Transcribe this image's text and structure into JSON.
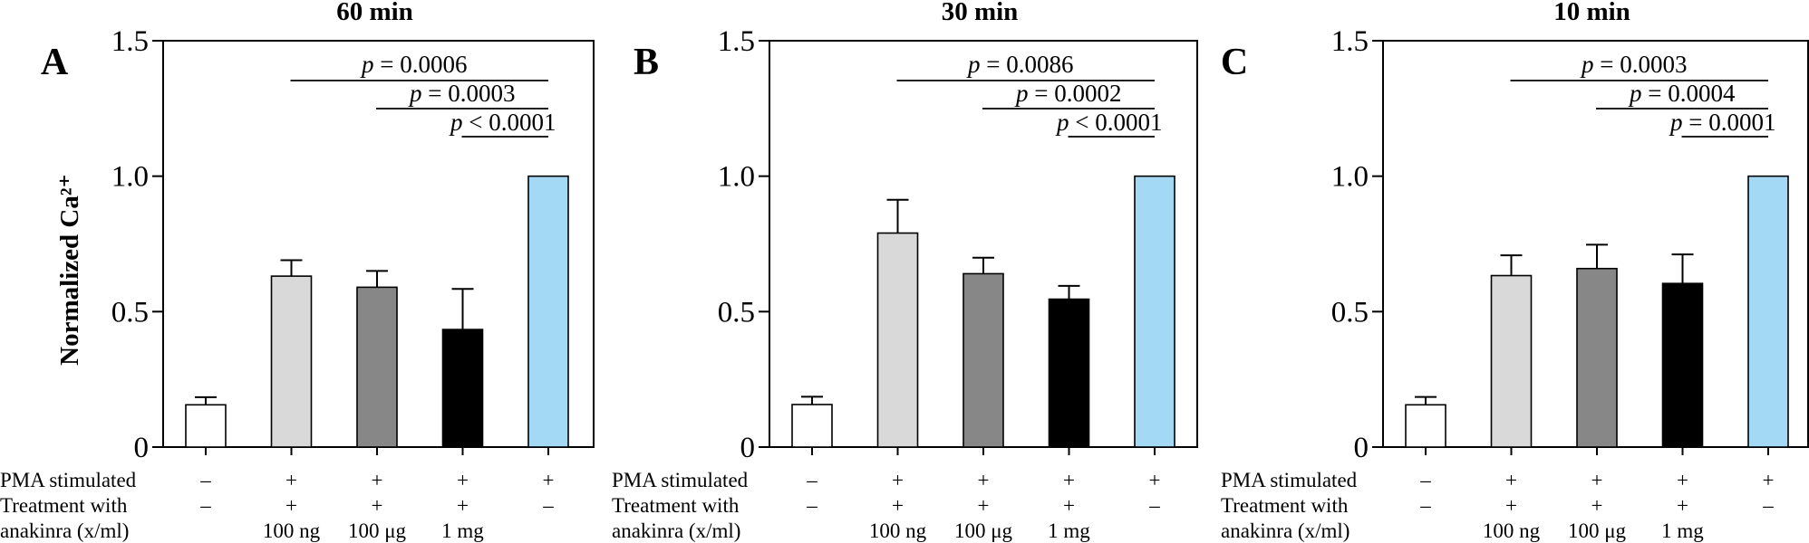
{
  "chart_data": [
    {
      "type": "bar",
      "panel_letter": "A",
      "title": "60 min",
      "ylabel": "Normalized Ca²⁺",
      "ylim": [
        0,
        1.5
      ],
      "yticks": [
        "0",
        "0.5",
        "1.0",
        "1.5"
      ],
      "values": [
        0.156,
        0.631,
        0.59,
        0.434,
        1.0
      ],
      "error_upper": [
        0.184,
        0.69,
        0.65,
        0.584,
        1.0
      ],
      "comparisons": [
        {
          "label": "p = 0.0006",
          "from": 1,
          "to": 4
        },
        {
          "label": "p = 0.0003",
          "from": 2,
          "to": 4
        },
        {
          "label": "p < 0.0001",
          "from": 3,
          "to": 4
        }
      ]
    },
    {
      "type": "bar",
      "panel_letter": "B",
      "title": "30 min",
      "ylim": [
        0,
        1.5
      ],
      "yticks": [
        "0",
        "0.5",
        "1.0",
        "1.5"
      ],
      "values": [
        0.157,
        0.79,
        0.64,
        0.546,
        1.0
      ],
      "error_upper": [
        0.186,
        0.913,
        0.699,
        0.595,
        1.0
      ],
      "comparisons": [
        {
          "label": "p = 0.0086",
          "from": 1,
          "to": 4
        },
        {
          "label": "p = 0.0002",
          "from": 2,
          "to": 4
        },
        {
          "label": "p < 0.0001",
          "from": 3,
          "to": 4
        }
      ]
    },
    {
      "type": "bar",
      "panel_letter": "C",
      "title": "10 min",
      "ylim": [
        0,
        1.5
      ],
      "yticks": [
        "0",
        "0.5",
        "1.0",
        "1.5"
      ],
      "values": [
        0.156,
        0.633,
        0.659,
        0.604,
        1.0
      ],
      "error_upper": [
        0.185,
        0.708,
        0.747,
        0.711,
        1.0
      ],
      "comparisons": [
        {
          "label": "p = 0.0003",
          "from": 1,
          "to": 4
        },
        {
          "label": "p = 0.0004",
          "from": 2,
          "to": 4
        },
        {
          "label": "p = 0.0001",
          "from": 3,
          "to": 4
        }
      ]
    }
  ],
  "bar_colors": [
    "#ffffff",
    "#d9d9d9",
    "#878787",
    "#000000",
    "#a3d9f5"
  ],
  "condition_rows": [
    {
      "label": "PMA stimulated",
      "values": [
        "–",
        "+",
        "+",
        "+",
        "+"
      ]
    },
    {
      "label": "Treatment with",
      "values": [
        "–",
        "+",
        "+",
        "+",
        "–"
      ]
    },
    {
      "label": "anakinra (x/ml)",
      "values": [
        "",
        "100 ng",
        "100 μg",
        "1 mg",
        ""
      ]
    }
  ]
}
